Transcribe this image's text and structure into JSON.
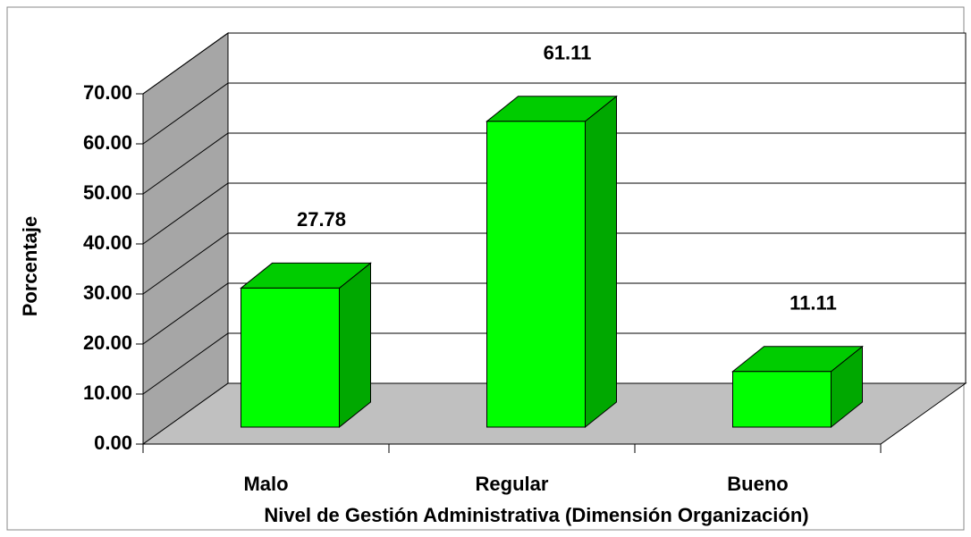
{
  "chart_data": {
    "type": "bar3d",
    "categories": [
      "Malo",
      "Regular",
      "Bueno"
    ],
    "values": [
      27.78,
      61.11,
      11.11
    ],
    "color": "#00ff00",
    "ylim": [
      0,
      70
    ],
    "yticks": [
      {
        "value": 0,
        "label": "0.00"
      },
      {
        "value": 10,
        "label": "10.00"
      },
      {
        "value": 20,
        "label": "20.00"
      },
      {
        "value": 30,
        "label": "30.00"
      },
      {
        "value": 40,
        "label": "40.00"
      },
      {
        "value": 50,
        "label": "50.00"
      },
      {
        "value": 60,
        "label": "60.00"
      },
      {
        "value": 70,
        "label": "70.00"
      }
    ],
    "y_label": "Porcentaje",
    "x_label": "Nivel de Gestión Administrativa (Dimensión Organización)",
    "grid": true
  }
}
